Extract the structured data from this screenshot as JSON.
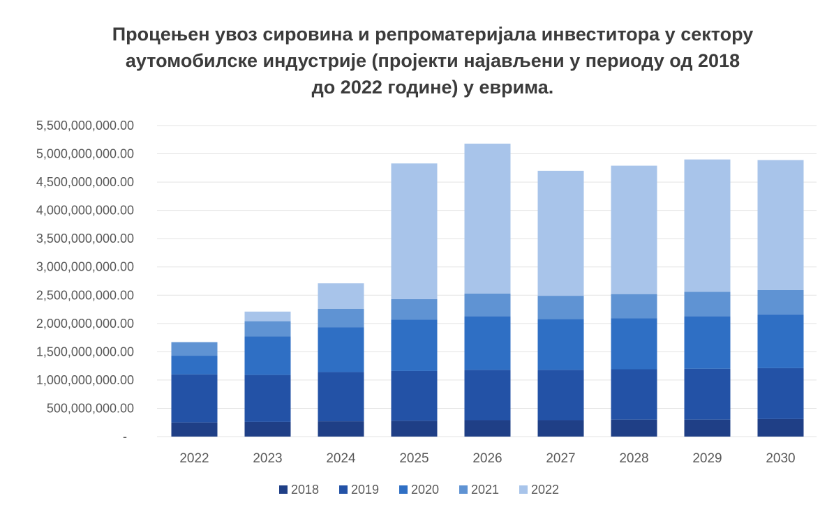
{
  "chart_data": {
    "type": "bar",
    "stacked": true,
    "title_lines": [
      "Процењен увоз сировина и репроматеријала инвеститора у сектору",
      "аутомобилске индустрије (пројекти најављени у периоду од 2018",
      "до 2022 године) у еврима."
    ],
    "xlabel": "",
    "ylabel": "",
    "categories": [
      "2022",
      "2023",
      "2024",
      "2025",
      "2026",
      "2027",
      "2028",
      "2029",
      "2030"
    ],
    "ylim": [
      0,
      5500000000
    ],
    "yticks": [
      0,
      500000000,
      1000000000,
      1500000000,
      2000000000,
      2500000000,
      3000000000,
      3500000000,
      4000000000,
      4500000000,
      5000000000,
      5500000000
    ],
    "ytick_labels": [
      "-",
      "500,000,000.00",
      "1,000,000,000.00",
      "1,500,000,000.00",
      "2,000,000,000.00",
      "2,500,000,000.00",
      "3,000,000,000.00",
      "3,500,000,000.00",
      "4,000,000,000.00",
      "4,500,000,000.00",
      "5,000,000,000.00",
      "5,500,000,000.00"
    ],
    "grid": true,
    "legend_position": "bottom",
    "series": [
      {
        "name": "2018",
        "color": "#1f3f86",
        "values": [
          250000000,
          260000000,
          270000000,
          280000000,
          290000000,
          290000000,
          300000000,
          300000000,
          310000000
        ]
      },
      {
        "name": "2019",
        "color": "#2352a6",
        "values": [
          850000000,
          830000000,
          870000000,
          880000000,
          890000000,
          890000000,
          890000000,
          900000000,
          900000000
        ]
      },
      {
        "name": "2020",
        "color": "#2f6fc4",
        "values": [
          330000000,
          680000000,
          790000000,
          910000000,
          950000000,
          900000000,
          900000000,
          930000000,
          950000000
        ]
      },
      {
        "name": "2021",
        "color": "#5f93d3",
        "values": [
          240000000,
          270000000,
          330000000,
          360000000,
          400000000,
          410000000,
          430000000,
          430000000,
          430000000
        ]
      },
      {
        "name": "2022",
        "color": "#a8c4ea",
        "values": [
          0,
          170000000,
          450000000,
          2400000000,
          2650000000,
          2210000000,
          2270000000,
          2340000000,
          2300000000
        ]
      }
    ]
  }
}
